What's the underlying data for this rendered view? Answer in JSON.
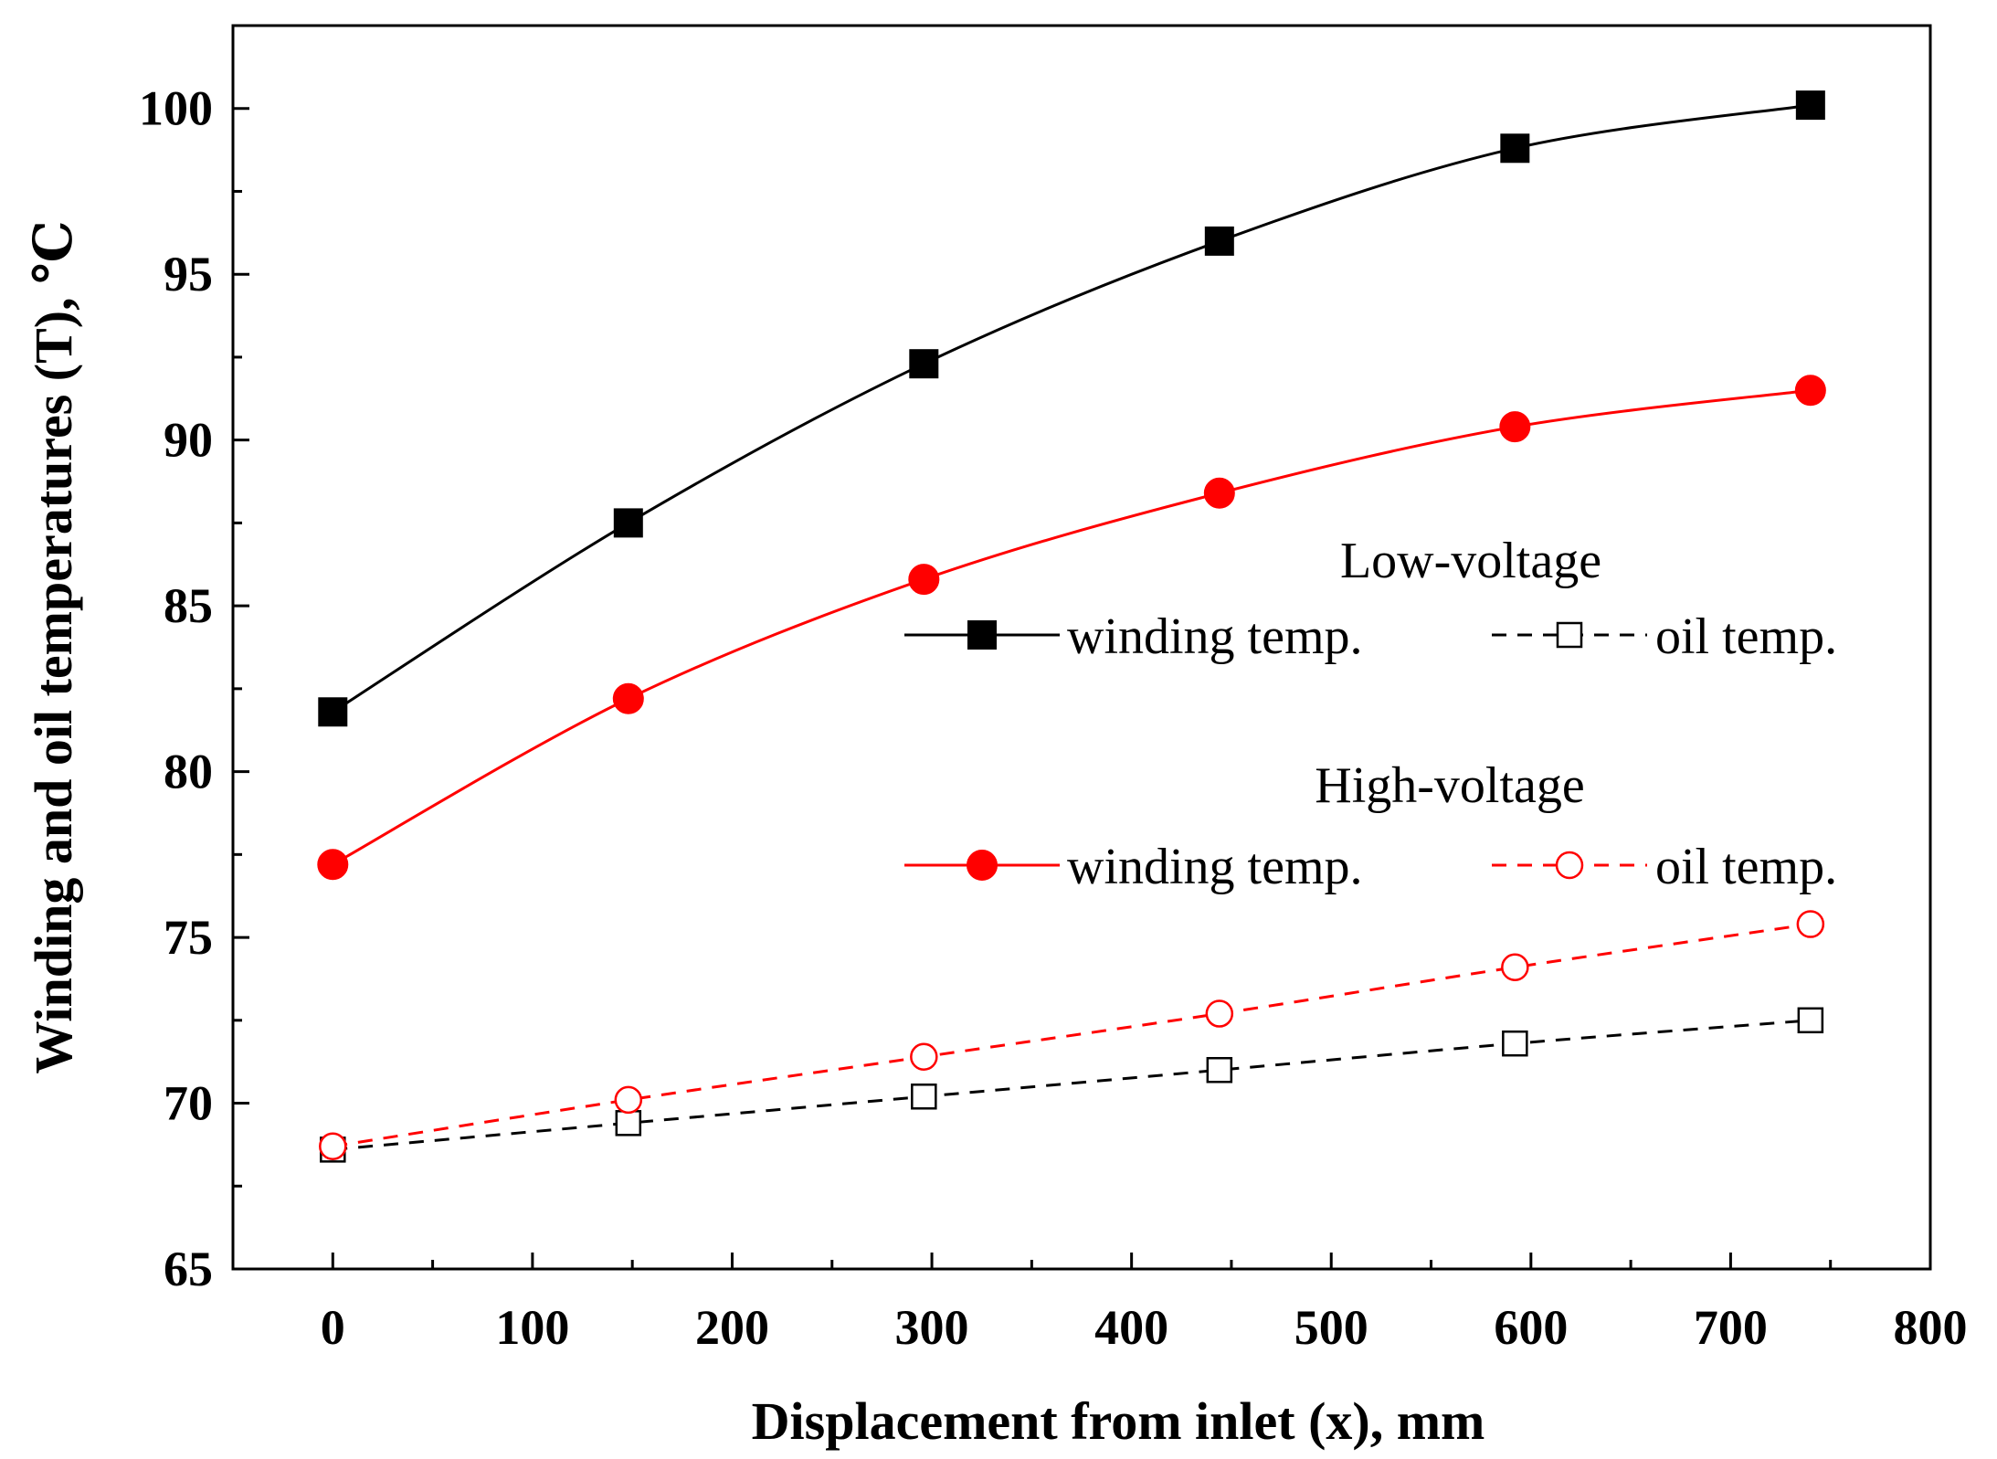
{
  "chart_data": {
    "type": "line",
    "xlabel": "Displacement from inlet (x), mm",
    "ylabel": "Winding and oil temperatures (T), ℃",
    "xlim": [
      -50,
      800
    ],
    "ylim": [
      65,
      102.5
    ],
    "xticks": [
      0,
      100,
      200,
      300,
      400,
      500,
      600,
      700,
      800
    ],
    "yticks": [
      65,
      70,
      75,
      80,
      85,
      90,
      95,
      100
    ],
    "xtick_labels": [
      "0",
      "100",
      "200",
      "300",
      "400",
      "500",
      "600",
      "700",
      "800"
    ],
    "ytick_labels": [
      "65",
      "70",
      "75",
      "80",
      "85",
      "90",
      "95",
      "100"
    ],
    "grid": false,
    "x": [
      0,
      148,
      296,
      444,
      592,
      740
    ],
    "series": [
      {
        "name": "winding temp.",
        "group": "Low-voltage",
        "values": [
          81.8,
          87.5,
          92.3,
          96.0,
          98.8,
          100.1
        ],
        "color": "#000000",
        "marker": "filled-square",
        "line": "solid"
      },
      {
        "name": "oil temp.",
        "group": "Low-voltage",
        "values": [
          68.6,
          69.4,
          70.2,
          71.0,
          71.8,
          72.5
        ],
        "color": "#000000",
        "marker": "open-square",
        "line": "dashed"
      },
      {
        "name": "winding temp.",
        "group": "High-voltage",
        "values": [
          77.2,
          82.2,
          85.8,
          88.4,
          90.4,
          91.5
        ],
        "color": "#ff0000",
        "marker": "filled-circle",
        "line": "solid"
      },
      {
        "name": "oil temp.",
        "group": "High-voltage",
        "values": [
          68.7,
          70.1,
          71.4,
          72.7,
          74.1,
          75.4
        ],
        "color": "#ff0000",
        "marker": "open-circle",
        "line": "dashed"
      }
    ],
    "legend": {
      "placement": "right-middle",
      "groups": [
        {
          "title": "Low-voltage",
          "entries": [
            "winding temp.",
            "oil temp."
          ]
        },
        {
          "title": "High-voltage",
          "entries": [
            "winding temp.",
            "oil temp."
          ]
        }
      ]
    }
  }
}
